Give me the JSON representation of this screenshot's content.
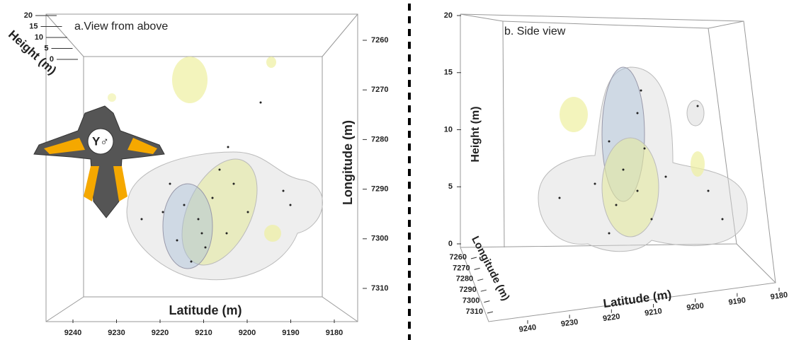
{
  "chart_data": [
    {
      "type": "scatter3d",
      "title": "a.View from above",
      "icon_label": "Y♂",
      "axes": [
        {
          "label": "Latitude (m)",
          "ticks": [
            9240,
            9230,
            9220,
            9210,
            9200,
            9190,
            9180
          ]
        },
        {
          "label": "Longitude (m)",
          "ticks": [
            7260,
            7270,
            7280,
            7290,
            7300,
            7310
          ]
        },
        {
          "label": "Height (m)",
          "ticks": [
            0,
            5,
            10,
            15,
            20
          ]
        }
      ]
    },
    {
      "type": "scatter3d",
      "title": "b. Side view",
      "axes": [
        {
          "label": "Latitude (m)",
          "ticks": [
            9240,
            9230,
            9220,
            9210,
            9200,
            9190,
            9180
          ]
        },
        {
          "label": "Longitude (m)",
          "ticks": [
            7260,
            7270,
            7280,
            7290,
            7300,
            7310
          ]
        },
        {
          "label": "Height (m)",
          "ticks": [
            0,
            5,
            10,
            15,
            20
          ]
        }
      ]
    }
  ]
}
